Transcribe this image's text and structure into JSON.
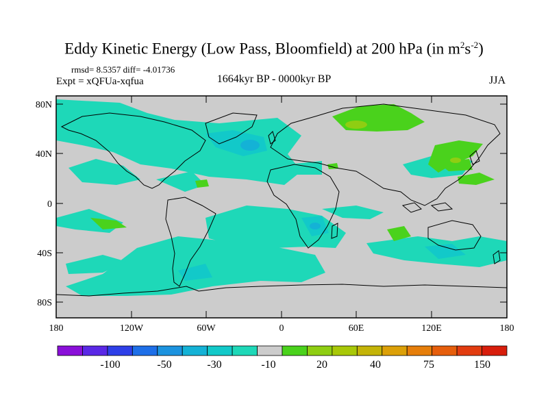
{
  "title": {
    "text": "Eddy Kinetic Energy (Low Pass, Bloomfield) at 200 hPa (in m",
    "sup1": "2",
    "mid": "s",
    "sup2": "-2",
    "tail": ")"
  },
  "stats": {
    "rmsd": "rmsd= 8.5357 diff= -4.01736",
    "expt": "Expt = xQFUa-xqfua"
  },
  "period": "1664kyr BP - 0000kyr BP",
  "season": "JJA",
  "axes": {
    "lat_ticks": [
      "80N",
      "40N",
      "0",
      "40S",
      "80S"
    ],
    "lon_ticks": [
      "180",
      "120W",
      "60W",
      "0",
      "60E",
      "120E",
      "180"
    ]
  },
  "colorbar": {
    "labels": [
      "-100",
      "-50",
      "-30",
      "-10",
      "20",
      "40",
      "75",
      "150"
    ],
    "colors": [
      "#8a0fd9",
      "#5a28e6",
      "#2e3fe8",
      "#1e6fe8",
      "#1c93df",
      "#14b2d6",
      "#12c9c9",
      "#1ed8b8",
      "#cccccc",
      "#4ad21c",
      "#8fce12",
      "#a8c808",
      "#c4b408",
      "#dca008",
      "#e67e0a",
      "#e65e0c",
      "#e23c10",
      "#d81e0c"
    ]
  },
  "regions": {
    "land_outline": "coastlines",
    "neutral": "#cccccc",
    "neg_light": "#1ed8b8",
    "neg_mid": "#12c9c9",
    "neg_deep": "#14b2d6",
    "pos_light": "#4ad21c",
    "pos_mid": "#8fce12"
  }
}
